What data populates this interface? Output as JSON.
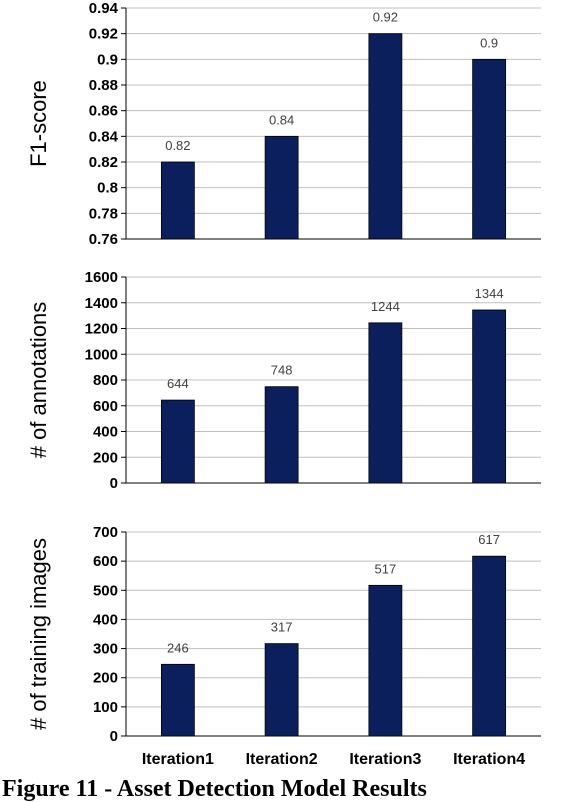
{
  "colors": {
    "bar": "#0b1f5c",
    "grid": "#bfbfbf",
    "axis": "#000000"
  },
  "caption": "Figure 11 - Asset Detection Model Results",
  "chart_data": [
    {
      "type": "bar",
      "categories": [
        "Iteration1",
        "Iteration2",
        "Iteration3",
        "Iteration4"
      ],
      "values": [
        0.82,
        0.84,
        0.92,
        0.9
      ],
      "value_labels": [
        "0.82",
        "0.84",
        "0.92",
        "0.9"
      ],
      "ylabel": "F1-score",
      "ylim": [
        0.76,
        0.94
      ],
      "yticks": [
        0.76,
        0.78,
        0.8,
        0.82,
        0.84,
        0.86,
        0.88,
        0.9,
        0.92,
        0.94
      ],
      "ytick_labels": [
        "0.76",
        "0.78",
        "0.8",
        "0.82",
        "0.84",
        "0.86",
        "0.88",
        "0.9",
        "0.92",
        "0.94"
      ],
      "grid": true
    },
    {
      "type": "bar",
      "categories": [
        "Iteration1",
        "Iteration2",
        "Iteration3",
        "Iteration4"
      ],
      "values": [
        644,
        748,
        1244,
        1344
      ],
      "value_labels": [
        "644",
        "748",
        "1244",
        "1344"
      ],
      "ylabel": "# of annotations",
      "ylim": [
        0,
        1600
      ],
      "yticks": [
        0,
        200,
        400,
        600,
        800,
        1000,
        1200,
        1400,
        1600
      ],
      "ytick_labels": [
        "0",
        "200",
        "400",
        "600",
        "800",
        "1000",
        "1200",
        "1400",
        "1600"
      ],
      "grid": true
    },
    {
      "type": "bar",
      "categories": [
        "Iteration1",
        "Iteration2",
        "Iteration3",
        "Iteration4"
      ],
      "values": [
        246,
        317,
        517,
        617
      ],
      "value_labels": [
        "246",
        "317",
        "517",
        "617"
      ],
      "ylabel": "# of training images",
      "ylim": [
        0,
        700
      ],
      "yticks": [
        0,
        100,
        200,
        300,
        400,
        500,
        600,
        700
      ],
      "ytick_labels": [
        "0",
        "100",
        "200",
        "300",
        "400",
        "500",
        "600",
        "700"
      ],
      "grid": true
    }
  ]
}
